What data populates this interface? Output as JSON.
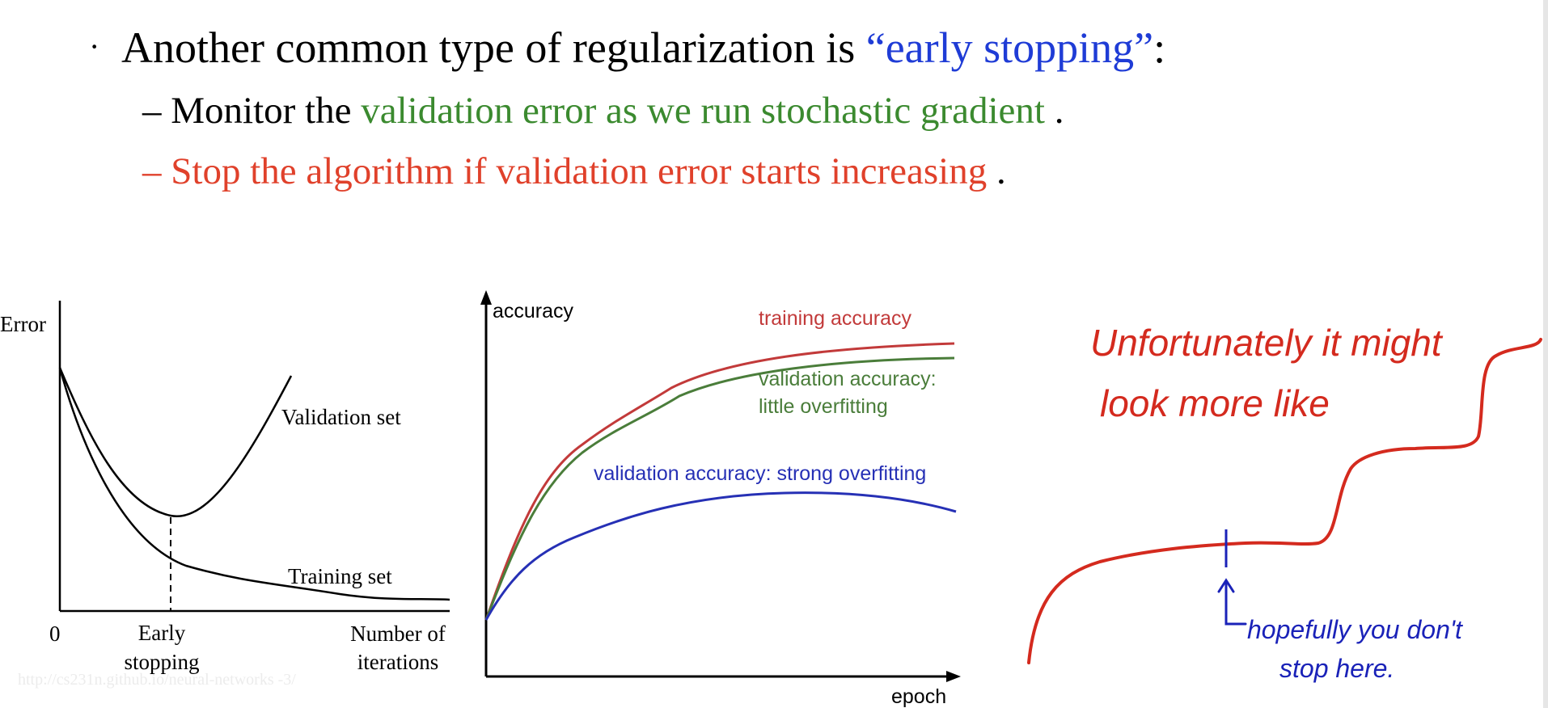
{
  "slide": {
    "bullet": {
      "symbol": "·",
      "text_before": "Another common type of regularization is ",
      "highlight": "“early stopping”",
      "text_after": ":"
    },
    "sub1": {
      "dash": "– ",
      "text_before": "Monitor the ",
      "highlight": "validation error as we run stochastic gradient",
      "text_after": " ."
    },
    "sub2": {
      "dash": "– ",
      "highlight": "Stop the algorithm if validation error starts increasing",
      "text_after": " ."
    }
  },
  "left_figure": {
    "ylabel": "Error",
    "origin_label": "0",
    "early_label_1": "Early",
    "early_label_2": "stopping",
    "xlabel_1": "Number of",
    "xlabel_2": "iterations",
    "validation_label": "Validation set",
    "training_label": "Training set",
    "watermark": "http://cs231n.github.io/neural-networks -3/"
  },
  "mid_figure": {
    "ylabel": "accuracy",
    "xlabel": "epoch",
    "training_label": "training accuracy",
    "val_little_1": "validation accuracy:",
    "val_little_2": "little overfitting",
    "val_strong": "validation accuracy: strong overfitting"
  },
  "right_figure": {
    "note_line_1": "Unfortunately it might",
    "note_line_2": "look more like",
    "hope_line_1": "hopefully you don't",
    "hope_line_2": "stop here."
  },
  "colors": {
    "blue": "#1f3cd6",
    "green": "#3b8a2f",
    "red": "#e0412b",
    "chart_red": "#c23a3a",
    "chart_green": "#4a7d3a",
    "chart_blue": "#2630b5",
    "hand_red": "#d42a1e",
    "hand_blue": "#1a22b8"
  }
}
